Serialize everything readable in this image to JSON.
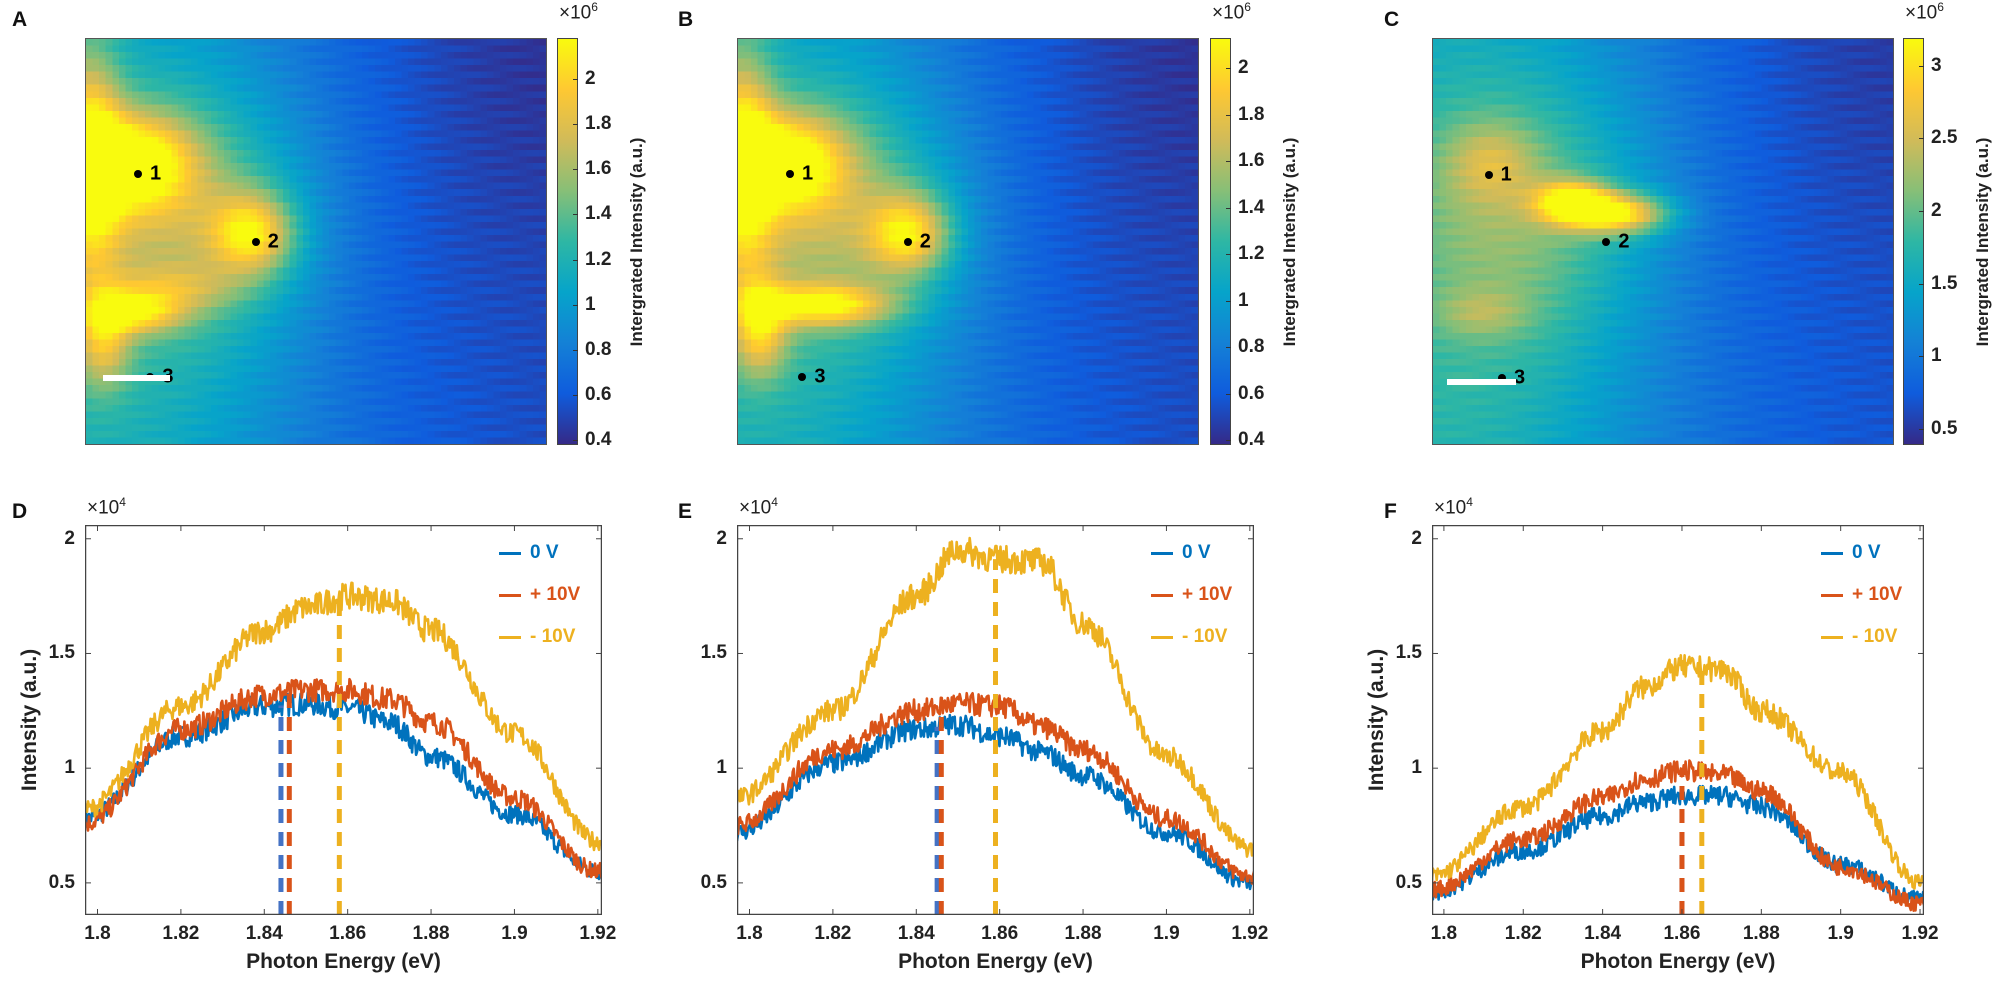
{
  "colormap": "parula",
  "colormap_stops": [
    "#352a87",
    "#0f5cdd",
    "#1481d6",
    "#06a4ca",
    "#2eb7a4",
    "#87bf77",
    "#d1bb59",
    "#fec832",
    "#f9fb0e"
  ],
  "series_colors": {
    "0 V": "#0072BD",
    "+ 10V": "#D95319",
    "- 10V": "#EDB120"
  },
  "chart_data": [
    {
      "panel": "A",
      "type": "heatmap",
      "colorbar": {
        "multiplier_base": "×10",
        "multiplier_exp": "6",
        "label": "Intergrated Intensity (a.u.)",
        "ticks": [
          "0.4",
          "0.6",
          "0.8",
          "1",
          "1.2",
          "1.4",
          "1.6",
          "1.8",
          "2"
        ],
        "range": [
          0.38,
          2.18
        ]
      },
      "markers": [
        "1",
        "2",
        "3"
      ],
      "scale_bar": true
    },
    {
      "panel": "B",
      "type": "heatmap",
      "colorbar": {
        "multiplier_base": "×10",
        "multiplier_exp": "6",
        "label": "Intergrated Intensity (a.u.)",
        "ticks": [
          "0.4",
          "0.6",
          "0.8",
          "1",
          "1.2",
          "1.4",
          "1.6",
          "1.8",
          "2"
        ],
        "range": [
          0.38,
          2.13
        ]
      },
      "markers": [
        "1",
        "2",
        "3"
      ],
      "scale_bar": false
    },
    {
      "panel": "C",
      "type": "heatmap",
      "colorbar": {
        "multiplier_base": "×10",
        "multiplier_exp": "6",
        "label": "Intergrated Intensity (a.u.)",
        "ticks": [
          "0.5",
          "1",
          "1.5",
          "2",
          "2.5",
          "3"
        ],
        "range": [
          0.39,
          3.19
        ]
      },
      "markers": [
        "1",
        "2",
        "3"
      ],
      "scale_bar": true
    },
    {
      "panel": "D",
      "type": "line",
      "xlabel": "Photon Energy (eV)",
      "ylabel": "Intensity (a.u.)",
      "y_multiplier_base": "×10",
      "y_multiplier_exp": "4",
      "xlim": [
        1.797,
        1.921
      ],
      "ylim": [
        0.36,
        2.06
      ],
      "xticks": [
        "1.8",
        "1.82",
        "1.84",
        "1.86",
        "1.88",
        "1.9",
        "1.92"
      ],
      "yticks": [
        "0.5",
        "1",
        "1.5",
        "2"
      ],
      "x": [
        1.797,
        1.82,
        1.84,
        1.85,
        1.86,
        1.87,
        1.88,
        1.9,
        1.92
      ],
      "series": [
        {
          "name": "0 V",
          "values": [
            0.78,
            1.14,
            1.27,
            1.28,
            1.26,
            1.2,
            1.05,
            0.8,
            0.55
          ],
          "peak_marker": 1.844
        },
        {
          "name": "+ 10V",
          "values": [
            0.76,
            1.17,
            1.32,
            1.34,
            1.34,
            1.3,
            1.2,
            0.87,
            0.55
          ],
          "peak_marker": 1.846
        },
        {
          "name": "- 10V",
          "values": [
            0.82,
            1.27,
            1.6,
            1.7,
            1.75,
            1.73,
            1.6,
            1.15,
            0.68
          ],
          "peak_marker": 1.858
        }
      ],
      "legend": "top-right"
    },
    {
      "panel": "E",
      "type": "line",
      "xlabel": "Photon Energy (eV)",
      "ylabel": "",
      "y_multiplier_base": "×10",
      "y_multiplier_exp": "4",
      "xlim": [
        1.797,
        1.921
      ],
      "ylim": [
        0.36,
        2.06
      ],
      "xticks": [
        "1.8",
        "1.82",
        "1.84",
        "1.86",
        "1.88",
        "1.9",
        "1.92"
      ],
      "yticks": [
        "0.5",
        "1",
        "1.5",
        "2"
      ],
      "x": [
        1.797,
        1.82,
        1.84,
        1.85,
        1.86,
        1.87,
        1.88,
        1.9,
        1.92
      ],
      "series": [
        {
          "name": "0 V",
          "values": [
            0.72,
            1.02,
            1.17,
            1.19,
            1.14,
            1.07,
            0.97,
            0.72,
            0.5
          ],
          "peak_marker": 1.845
        },
        {
          "name": "+ 10V",
          "values": [
            0.75,
            1.08,
            1.25,
            1.28,
            1.27,
            1.18,
            1.08,
            0.78,
            0.53
          ],
          "peak_marker": 1.846
        },
        {
          "name": "- 10V",
          "values": [
            0.87,
            1.25,
            1.75,
            1.95,
            1.91,
            1.9,
            1.63,
            1.05,
            0.65
          ],
          "peak_marker": 1.859
        }
      ],
      "legend": "top-right"
    },
    {
      "panel": "F",
      "type": "line",
      "xlabel": "Photon Energy (eV)",
      "ylabel": "Intensity (a.u.)",
      "y_multiplier_base": "×10",
      "y_multiplier_exp": "4",
      "xlim": [
        1.797,
        1.921
      ],
      "ylim": [
        0.36,
        2.06
      ],
      "xticks": [
        "1.8",
        "1.82",
        "1.84",
        "1.86",
        "1.88",
        "1.9",
        "1.92"
      ],
      "yticks": [
        "0.5",
        "1",
        "1.5",
        "2"
      ],
      "x": [
        1.797,
        1.82,
        1.84,
        1.85,
        1.86,
        1.87,
        1.88,
        1.9,
        1.92
      ],
      "series": [
        {
          "name": "0 V",
          "values": [
            0.46,
            0.64,
            0.79,
            0.85,
            0.88,
            0.88,
            0.83,
            0.58,
            0.43
          ],
          "peak_marker": 1.86
        },
        {
          "name": "+ 10V",
          "values": [
            0.47,
            0.69,
            0.87,
            0.95,
            0.99,
            0.97,
            0.9,
            0.57,
            0.41
          ],
          "peak_marker": 1.86
        },
        {
          "name": "- 10V",
          "values": [
            0.53,
            0.83,
            1.16,
            1.35,
            1.44,
            1.43,
            1.25,
            0.98,
            0.5
          ],
          "peak_marker": 1.865
        }
      ],
      "legend": "top-right"
    }
  ]
}
